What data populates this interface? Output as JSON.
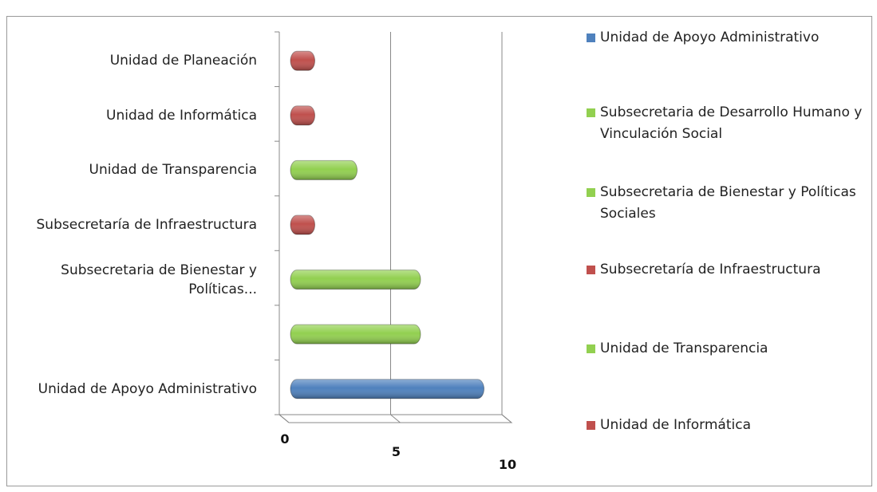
{
  "chart_data": {
    "type": "bar3d",
    "categories": [
      "Unidad de Apoyo Administrativo",
      null,
      "Subsecretaria de Bienestar y Políticas...",
      "Subsecretaría de Infraestructura",
      "Unidad de Transparencia",
      "Unidad de Informática",
      "Unidad de Planeación"
    ],
    "values": [
      9,
      6,
      6,
      1,
      3,
      1,
      1
    ],
    "colors": [
      "#4f81bd",
      "#92d050",
      "#92d050",
      "#c0504d",
      "#92d050",
      "#c0504d",
      "#c0504d"
    ],
    "xlim": [
      0,
      10
    ],
    "xticks": [
      0,
      5,
      10
    ],
    "grid": true,
    "legend": [
      {
        "name": "Unidad de Apoyo Administrativo",
        "color": "#4f81bd"
      },
      {
        "name": "Subsecretaria de Desarrollo Humano y Vinculación Social",
        "color": "#92d050"
      },
      {
        "name": "Subsecretaria de Bienestar y Políticas Sociales",
        "color": "#92d050"
      },
      {
        "name": "Subsecretaría de Infraestructura",
        "color": "#c0504d"
      },
      {
        "name": "Unidad de Transparencia",
        "color": "#92d050"
      },
      {
        "name": "Unidad de Informática",
        "color": "#c0504d"
      }
    ]
  }
}
